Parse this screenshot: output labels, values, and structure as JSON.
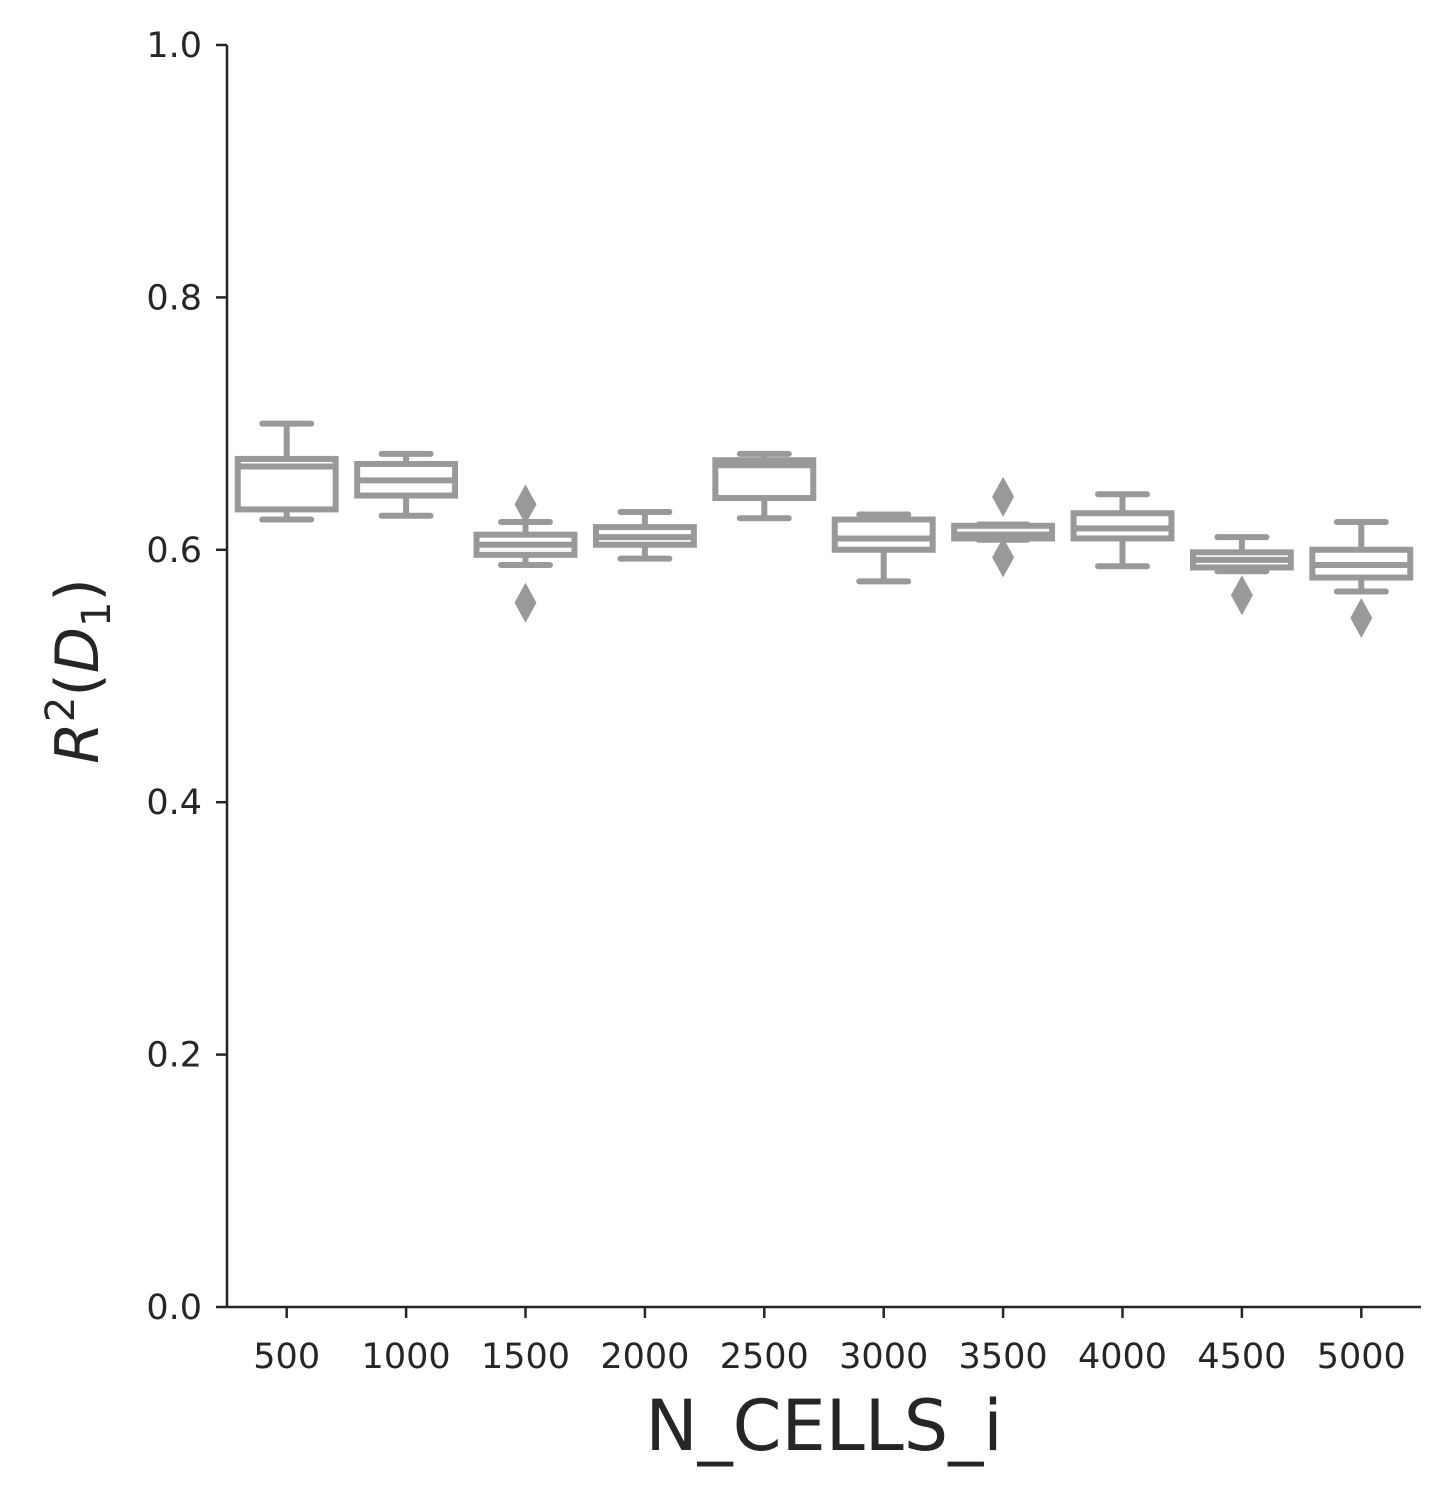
{
  "chart_data": {
    "type": "box",
    "xlabel": "N_CELLS_i",
    "ylabel": {
      "base": "R",
      "sup": "2",
      "open": "(",
      "var": "D",
      "sub": "1",
      "close": ")"
    },
    "ylim": [
      0,
      1
    ],
    "yticks": [
      "0.0",
      "0.2",
      "0.4",
      "0.6",
      "0.8",
      "1.0"
    ],
    "categories": [
      "500",
      "1000",
      "1500",
      "2000",
      "2500",
      "3000",
      "3500",
      "4000",
      "4500",
      "5000"
    ],
    "box_color": "#999999",
    "axis_color": "#262626",
    "grid": false,
    "boxes": [
      {
        "whislo": 0.624,
        "q1": 0.632,
        "med": 0.666,
        "q3": 0.672,
        "whishi": 0.7,
        "fliers": []
      },
      {
        "whislo": 0.627,
        "q1": 0.643,
        "med": 0.655,
        "q3": 0.668,
        "whishi": 0.676,
        "fliers": []
      },
      {
        "whislo": 0.588,
        "q1": 0.596,
        "med": 0.604,
        "q3": 0.612,
        "whishi": 0.622,
        "fliers": [
          0.558,
          0.636
        ]
      },
      {
        "whislo": 0.593,
        "q1": 0.604,
        "med": 0.61,
        "q3": 0.618,
        "whishi": 0.63,
        "fliers": []
      },
      {
        "whislo": 0.625,
        "q1": 0.641,
        "med": 0.667,
        "q3": 0.671,
        "whishi": 0.676,
        "fliers": []
      },
      {
        "whislo": 0.575,
        "q1": 0.6,
        "med": 0.609,
        "q3": 0.624,
        "whishi": 0.628,
        "fliers": []
      },
      {
        "whislo": 0.608,
        "q1": 0.609,
        "med": 0.612,
        "q3": 0.619,
        "whishi": 0.62,
        "fliers": [
          0.594,
          0.642
        ]
      },
      {
        "whislo": 0.587,
        "q1": 0.609,
        "med": 0.617,
        "q3": 0.629,
        "whishi": 0.644,
        "fliers": []
      },
      {
        "whislo": 0.583,
        "q1": 0.586,
        "med": 0.592,
        "q3": 0.598,
        "whishi": 0.61,
        "fliers": [
          0.564
        ]
      },
      {
        "whislo": 0.567,
        "q1": 0.578,
        "med": 0.588,
        "q3": 0.6,
        "whishi": 0.622,
        "fliers": [
          0.546
        ]
      }
    ]
  }
}
